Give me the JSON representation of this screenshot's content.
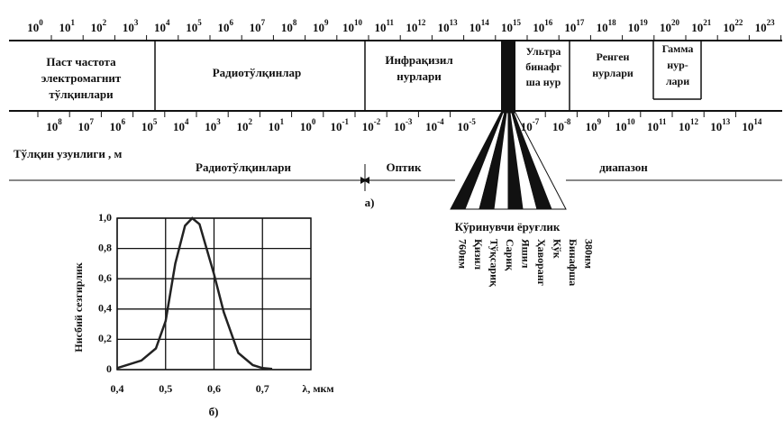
{
  "top_scale": {
    "base": "10",
    "exponents": [
      "0",
      "1",
      "2",
      "3",
      "4",
      "5",
      "6",
      "7",
      "8",
      "9",
      "10",
      "11",
      "12",
      "13",
      "14",
      "15",
      "16",
      "17",
      "18",
      "19",
      "20",
      "21",
      "22",
      "23"
    ]
  },
  "bands": [
    {
      "lines": [
        "Паст частота",
        "электромагнит",
        "тўлқинлари"
      ]
    },
    {
      "lines": [
        "Радиотўлқинлар"
      ]
    },
    {
      "lines": [
        "Инфрақизил",
        "нурлари"
      ]
    },
    {
      "lines": [
        "Ультра",
        "бинафг",
        "ша нур"
      ]
    },
    {
      "lines": [
        "Ренген",
        "нурлари"
      ]
    },
    {
      "lines": [
        "Гамма",
        "нур-",
        "лари"
      ]
    }
  ],
  "bottom_scale": {
    "base": "10",
    "exponents": [
      "8",
      "7",
      "6",
      "5",
      "4",
      "3",
      "2",
      "1",
      "0",
      "-1",
      "-2",
      "-3",
      "-4",
      "-5",
      "-7",
      "-8",
      "9",
      "10",
      "11",
      "12",
      "13",
      "14"
    ]
  },
  "wavelength_label": "Тўлқин узунлиги , м",
  "ranges": {
    "radio": "Радиотўлқинлари",
    "optic": "Оптик",
    "range": "диапазон"
  },
  "caption_a": "а)",
  "visible": {
    "title": "Кўринувчи ёруғлик",
    "labels": [
      "760нм",
      "Қизил",
      "Тўқсариқ",
      "Сариқ",
      "Яшил",
      "Ҳаворанг",
      "Кўк",
      "Бинафша",
      "380нм"
    ]
  },
  "chart_data": {
    "type": "line",
    "ylabel": "Нисбий сезгирлик",
    "xlabel": "λ, мкм",
    "x": [
      0.4,
      0.45,
      0.48,
      0.5,
      0.52,
      0.54,
      0.555,
      0.57,
      0.6,
      0.62,
      0.65,
      0.68,
      0.7,
      0.72
    ],
    "values": [
      0.01,
      0.06,
      0.14,
      0.32,
      0.7,
      0.95,
      1.0,
      0.96,
      0.63,
      0.38,
      0.11,
      0.03,
      0.01,
      0.005
    ],
    "color": "#222",
    "xlim": [
      0.4,
      0.8
    ],
    "ylim": [
      0,
      1.0
    ],
    "xticks": [
      {
        "value": 0.4,
        "label": "0,4"
      },
      {
        "value": 0.5,
        "label": "0,5"
      },
      {
        "value": 0.6,
        "label": "0,6"
      },
      {
        "value": 0.7,
        "label": "0,7"
      }
    ],
    "yticks": [
      0,
      {
        "value": 0.2,
        "label": "0,2"
      },
      {
        "value": 0.4,
        "label": "0,4"
      },
      {
        "value": 0.6,
        "label": "0,6"
      },
      {
        "value": 0.8,
        "label": "0,8"
      },
      {
        "value": 1.0,
        "label": "1,0"
      }
    ],
    "grid": true
  },
  "caption_b": "б)"
}
